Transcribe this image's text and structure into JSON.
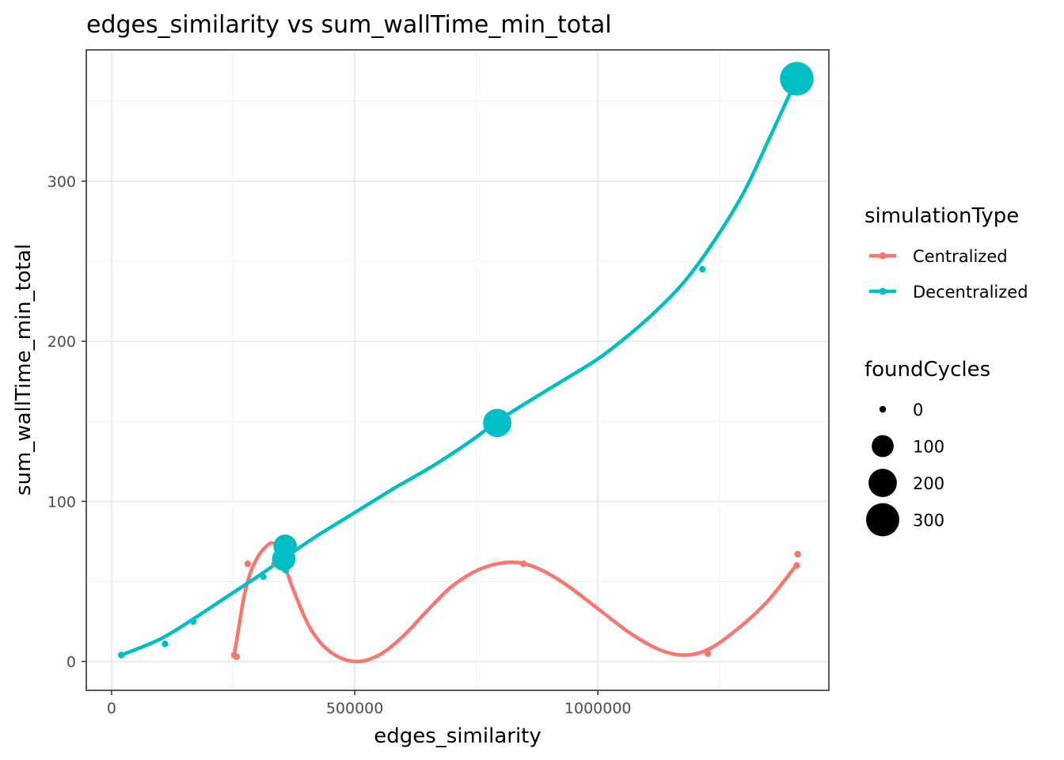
{
  "chart_data": {
    "type": "scatter",
    "title": "edges_similarity  vs  sum_wallTime_min_total",
    "xlabel": "edges_similarity",
    "ylabel": "sum_wallTime_min_total",
    "xlim": [
      -52000,
      1475000
    ],
    "ylim": [
      -18,
      382
    ],
    "xticks": [
      0,
      500000,
      1000000
    ],
    "xtick_labels": [
      "0",
      "500000",
      "1000000"
    ],
    "yticks": [
      0,
      100,
      200,
      300
    ],
    "ytick_labels": [
      "0",
      "100",
      "200",
      "300"
    ],
    "grid": true,
    "legend_position": "right",
    "color_legend": {
      "title": "simulationType",
      "entries": [
        {
          "label": "Centralized",
          "color": "#F8766D"
        },
        {
          "label": "Decentralized",
          "color": "#00BFC4"
        }
      ]
    },
    "size_legend": {
      "title": "foundCycles",
      "entries": [
        {
          "label": "0",
          "value": 0
        },
        {
          "label": "100",
          "value": 100
        },
        {
          "label": "200",
          "value": 200
        },
        {
          "label": "300",
          "value": 300
        }
      ]
    },
    "series": [
      {
        "name": "Centralized",
        "color": "#F8766D",
        "points": [
          {
            "x": 252000,
            "y": 4,
            "size": 0
          },
          {
            "x": 257000,
            "y": 3,
            "size": 0
          },
          {
            "x": 280000,
            "y": 61,
            "size": 0
          },
          {
            "x": 335000,
            "y": 61,
            "size": 0
          },
          {
            "x": 358000,
            "y": 59,
            "size": 0
          },
          {
            "x": 847000,
            "y": 61,
            "size": 0
          },
          {
            "x": 1226000,
            "y": 5,
            "size": 0
          },
          {
            "x": 1409000,
            "y": 60,
            "size": 0
          },
          {
            "x": 1411000,
            "y": 67,
            "size": 0
          }
        ],
        "smooth": [
          {
            "x": 252000,
            "y": 4
          },
          {
            "x": 262000,
            "y": 22
          },
          {
            "x": 272000,
            "y": 40
          },
          {
            "x": 285000,
            "y": 55
          },
          {
            "x": 300000,
            "y": 65
          },
          {
            "x": 315000,
            "y": 71
          },
          {
            "x": 330000,
            "y": 74
          },
          {
            "x": 345000,
            "y": 70
          },
          {
            "x": 358000,
            "y": 58
          },
          {
            "x": 380000,
            "y": 40
          },
          {
            "x": 410000,
            "y": 20
          },
          {
            "x": 450000,
            "y": 6
          },
          {
            "x": 500000,
            "y": 0
          },
          {
            "x": 550000,
            "y": 4
          },
          {
            "x": 600000,
            "y": 16
          },
          {
            "x": 650000,
            "y": 32
          },
          {
            "x": 700000,
            "y": 47
          },
          {
            "x": 760000,
            "y": 58
          },
          {
            "x": 820000,
            "y": 62
          },
          {
            "x": 870000,
            "y": 59
          },
          {
            "x": 930000,
            "y": 49
          },
          {
            "x": 1000000,
            "y": 33
          },
          {
            "x": 1070000,
            "y": 17
          },
          {
            "x": 1130000,
            "y": 7
          },
          {
            "x": 1180000,
            "y": 4
          },
          {
            "x": 1230000,
            "y": 8
          },
          {
            "x": 1290000,
            "y": 21
          },
          {
            "x": 1350000,
            "y": 38
          },
          {
            "x": 1410000,
            "y": 61
          }
        ]
      },
      {
        "name": "Decentralized",
        "color": "#00BFC4",
        "points": [
          {
            "x": 20000,
            "y": 4,
            "size": 0
          },
          {
            "x": 110000,
            "y": 11,
            "size": 0
          },
          {
            "x": 168000,
            "y": 25,
            "size": 0
          },
          {
            "x": 312000,
            "y": 53,
            "size": 0
          },
          {
            "x": 354000,
            "y": 64,
            "size": 120
          },
          {
            "x": 357000,
            "y": 72,
            "size": 120
          },
          {
            "x": 358000,
            "y": 57,
            "size": 0
          },
          {
            "x": 793000,
            "y": 149,
            "size": 200
          },
          {
            "x": 1215000,
            "y": 245,
            "size": 0
          },
          {
            "x": 1409000,
            "y": 364,
            "size": 310
          }
        ],
        "smooth": [
          {
            "x": 20000,
            "y": 4
          },
          {
            "x": 100000,
            "y": 14
          },
          {
            "x": 170000,
            "y": 27
          },
          {
            "x": 240000,
            "y": 41
          },
          {
            "x": 300000,
            "y": 53
          },
          {
            "x": 357000,
            "y": 65
          },
          {
            "x": 420000,
            "y": 78
          },
          {
            "x": 500000,
            "y": 93
          },
          {
            "x": 580000,
            "y": 108
          },
          {
            "x": 660000,
            "y": 122
          },
          {
            "x": 740000,
            "y": 138
          },
          {
            "x": 793000,
            "y": 150
          },
          {
            "x": 850000,
            "y": 161
          },
          {
            "x": 920000,
            "y": 174
          },
          {
            "x": 1000000,
            "y": 189
          },
          {
            "x": 1060000,
            "y": 203
          },
          {
            "x": 1120000,
            "y": 219
          },
          {
            "x": 1180000,
            "y": 238
          },
          {
            "x": 1240000,
            "y": 263
          },
          {
            "x": 1300000,
            "y": 293
          },
          {
            "x": 1350000,
            "y": 325
          },
          {
            "x": 1409000,
            "y": 364
          }
        ]
      }
    ]
  }
}
